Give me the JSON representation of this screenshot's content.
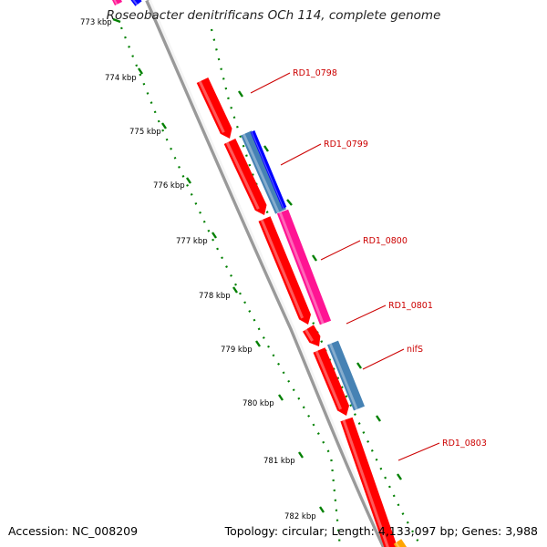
{
  "title": "Roseobacter denitrificans OCh 114, complete genome",
  "footer": {
    "accession": "Accession: NC_008209",
    "topology": "Topology: circular; Length: 4,133,097 bp; Genes: 3,988"
  },
  "ticks": [
    {
      "label": "773 kbp"
    },
    {
      "label": "774 kbp"
    },
    {
      "label": "775 kbp"
    },
    {
      "label": "776 kbp"
    },
    {
      "label": "777 kbp"
    },
    {
      "label": "778 kbp"
    },
    {
      "label": "779 kbp"
    },
    {
      "label": "780 kbp"
    },
    {
      "label": "781 kbp"
    },
    {
      "label": "782 kbp"
    }
  ],
  "genes": [
    {
      "label": "RD1_0798",
      "color": "#ff0000"
    },
    {
      "label": "RD1_0799",
      "color": "#4682b4"
    },
    {
      "label": "RD1_0800",
      "color": "#ff1493"
    },
    {
      "label": "RD1_0801",
      "color": "#ff0000"
    },
    {
      "label": "nifS",
      "color": "#4682b4"
    },
    {
      "label": "RD1_0803",
      "color": "#ff0000"
    }
  ],
  "colors": {
    "backbone": "#808080",
    "tick_green": "#008000",
    "label_red": "#cc0000",
    "gene_red": "#ff0000",
    "gene_steelblue": "#4682b4",
    "gene_pink": "#ff1493",
    "gene_blue": "#0000ff",
    "gene_orange": "#ffa500"
  }
}
